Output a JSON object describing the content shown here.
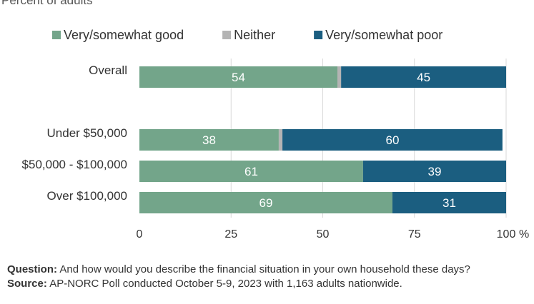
{
  "subtitle": "Percent of adults",
  "chart_data": {
    "type": "bar",
    "orientation": "horizontal",
    "stacked": true,
    "categories": [
      "Overall",
      "Under $50,000",
      "$50,000 - $100,000",
      "Over $100,000"
    ],
    "series": [
      {
        "name": "Very/somewhat good",
        "color": "#73a58a",
        "values": [
          54,
          38,
          61,
          69
        ],
        "labels": [
          "54",
          "38",
          "61",
          "69"
        ]
      },
      {
        "name": "Neither",
        "color": "#b4b4b4",
        "values": [
          1,
          1,
          0,
          0
        ],
        "labels": [
          "",
          "",
          "",
          ""
        ]
      },
      {
        "name": "Very/somewhat poor",
        "color": "#1b5e80",
        "values": [
          45,
          60,
          39,
          31
        ],
        "labels": [
          "45",
          "60",
          "39",
          "31"
        ]
      }
    ],
    "xlim": [
      0,
      100
    ],
    "xticks": [
      "0",
      "25",
      "50",
      "75",
      "100"
    ],
    "xtick_unit": "%",
    "grid": true,
    "legend_position": "top"
  },
  "notes": {
    "question_label": "Question:",
    "question_text": "And how would you describe the financial situation in your own household these days?",
    "source_label": "Source:",
    "source_text": "AP-NORC Poll conducted October 5-9, 2023 with 1,163 adults nationwide."
  }
}
